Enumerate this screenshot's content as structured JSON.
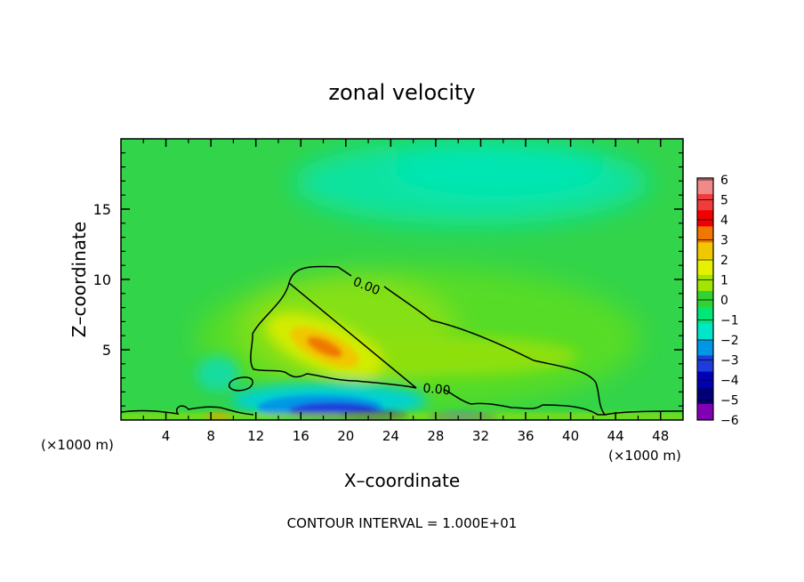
{
  "chart_data": {
    "type": "heatmap",
    "title": "zonal velocity",
    "xlabel": "X–coordinate",
    "ylabel": "Z–coordinate",
    "x_unit": "(×1000 m)",
    "x_unit_right": "(×1000 m)",
    "xlim": [
      0,
      50
    ],
    "ylim": [
      0,
      20
    ],
    "x_ticks": [
      4,
      8,
      12,
      16,
      20,
      24,
      28,
      32,
      36,
      40,
      44,
      48
    ],
    "y_ticks": [
      5,
      10,
      15
    ],
    "colorbar": {
      "levels": [
        "6",
        "5",
        "4",
        "3",
        "2",
        "1",
        "0",
        "−1",
        "−2",
        "−3",
        "−4",
        "−5",
        "−6"
      ],
      "colors": [
        "#f08a8a",
        "#f03c3c",
        "#f00000",
        "#f07800",
        "#f0c800",
        "#e6f000",
        "#a0e600",
        "#32d232",
        "#00e678",
        "#00e6c8",
        "#0096e6",
        "#1e3cdc",
        "#0000b4",
        "#000078",
        "#8200b4"
      ]
    },
    "contour_labels": [
      "0.00",
      "0.00"
    ],
    "annotation": "CONTOUR INTERVAL = 1.000E+01"
  }
}
